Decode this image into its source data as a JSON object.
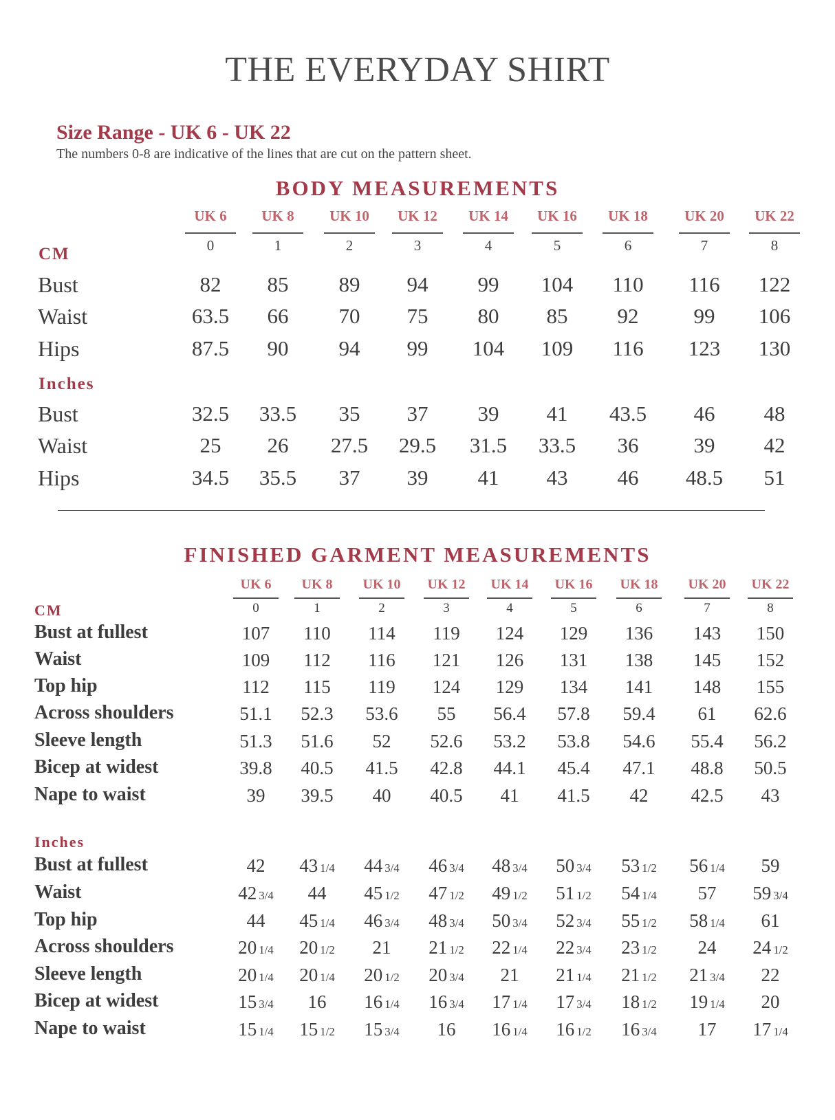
{
  "title": "THE EVERYDAY SHIRT",
  "size_range": "Size Range - UK 6 - UK 22",
  "note": "The numbers 0-8 are indicative of the lines that are cut on the pattern sheet.",
  "sizes": [
    "UK 6",
    "UK 8",
    "UK 10",
    "UK 12",
    "UK 14",
    "UK 16",
    "UK 18",
    "UK 20",
    "UK 22"
  ],
  "lines": [
    "0",
    "1",
    "2",
    "3",
    "4",
    "5",
    "6",
    "7",
    "8"
  ],
  "body": {
    "heading": "BODY MEASUREMENTS",
    "cm_label": "CM",
    "inches_label": "Inches",
    "cm_rows": [
      {
        "label": "Bust",
        "values": [
          "82",
          "85",
          "89",
          "94",
          "99",
          "104",
          "110",
          "116",
          "122"
        ]
      },
      {
        "label": "Waist",
        "values": [
          "63.5",
          "66",
          "70",
          "75",
          "80",
          "85",
          "92",
          "99",
          "106"
        ]
      },
      {
        "label": "Hips",
        "values": [
          "87.5",
          "90",
          "94",
          "99",
          "104",
          "109",
          "116",
          "123",
          "130"
        ]
      }
    ],
    "inch_rows": [
      {
        "label": "Bust",
        "values": [
          "32.5",
          "33.5",
          "35",
          "37",
          "39",
          "41",
          "43.5",
          "46",
          "48"
        ]
      },
      {
        "label": "Waist",
        "values": [
          "25",
          "26",
          "27.5",
          "29.5",
          "31.5",
          "33.5",
          "36",
          "39",
          "42"
        ]
      },
      {
        "label": "Hips",
        "values": [
          "34.5",
          "35.5",
          "37",
          "39",
          "41",
          "43",
          "46",
          "48.5",
          "51"
        ]
      }
    ]
  },
  "garment": {
    "heading": "FINISHED GARMENT  MEASUREMENTS",
    "cm_label": "CM",
    "inches_label": "Inches",
    "cm_rows": [
      {
        "label": "Bust at fullest",
        "values": [
          "107",
          "110",
          "114",
          "119",
          "124",
          "129",
          "136",
          "143",
          "150"
        ]
      },
      {
        "label": "Waist",
        "values": [
          "109",
          "112",
          "116",
          "121",
          "126",
          "131",
          "138",
          "145",
          "152"
        ]
      },
      {
        "label": "Top hip",
        "values": [
          "112",
          "115",
          "119",
          "124",
          "129",
          "134",
          "141",
          "148",
          "155"
        ]
      },
      {
        "label": "Across shoulders",
        "values": [
          "51.1",
          "52.3",
          "53.6",
          "55",
          "56.4",
          "57.8",
          "59.4",
          "61",
          "62.6"
        ]
      },
      {
        "label": "Sleeve length",
        "values": [
          "51.3",
          "51.6",
          "52",
          "52.6",
          "53.2",
          "53.8",
          "54.6",
          "55.4",
          "56.2"
        ]
      },
      {
        "label": "Bicep at widest",
        "values": [
          "39.8",
          "40.5",
          "41.5",
          "42.8",
          "44.1",
          "45.4",
          "47.1",
          "48.8",
          "50.5"
        ]
      },
      {
        "label": "Nape to waist",
        "values": [
          "39",
          "39.5",
          "40",
          "40.5",
          "41",
          "41.5",
          "42",
          "42.5",
          "43"
        ]
      }
    ],
    "inch_rows": [
      {
        "label": "Bust at fullest",
        "values": [
          "42",
          "43 1/4",
          "44 3/4",
          "46 3/4",
          "48 3/4",
          "50 3/4",
          "53 1/2",
          "56 1/4",
          "59"
        ]
      },
      {
        "label": "Waist",
        "values": [
          "42 3/4",
          "44",
          "45 1/2",
          "47 1/2",
          "49 1/2",
          "51 1/2",
          "54 1/4",
          "57",
          "59 3/4"
        ]
      },
      {
        "label": "Top hip",
        "values": [
          "44",
          "45 1/4",
          "46 3/4",
          "48 3/4",
          "50 3/4",
          "52 3/4",
          "55 1/2",
          "58 1/4",
          "61"
        ]
      },
      {
        "label": "Across shoulders",
        "values": [
          "20 1/4",
          "20 1/2",
          "21",
          "21 1/2",
          "22 1/4",
          "22 3/4",
          "23 1/2",
          "24",
          "24 1/2"
        ]
      },
      {
        "label": "Sleeve length",
        "values": [
          "20 1/4",
          "20 1/4",
          "20 1/2",
          "20 3/4",
          "21",
          "21 1/4",
          "21 1/2",
          "21 3/4",
          "22"
        ]
      },
      {
        "label": "Bicep at widest",
        "values": [
          "15 3/4",
          "16",
          "16 1/4",
          "16 3/4",
          "17 1/4",
          "17 3/4",
          "18 1/2",
          "19 1/4",
          "20"
        ]
      },
      {
        "label": "Nape to waist",
        "values": [
          "15 1/4",
          "15 1/2",
          "15 3/4",
          "16",
          "16 1/4",
          "16 1/2",
          "16 3/4",
          "17",
          "17 1/4"
        ]
      }
    ]
  },
  "colors": {
    "accent": "#a33a4a",
    "size_header": "#c0646c",
    "text": "#3d3d3d"
  }
}
